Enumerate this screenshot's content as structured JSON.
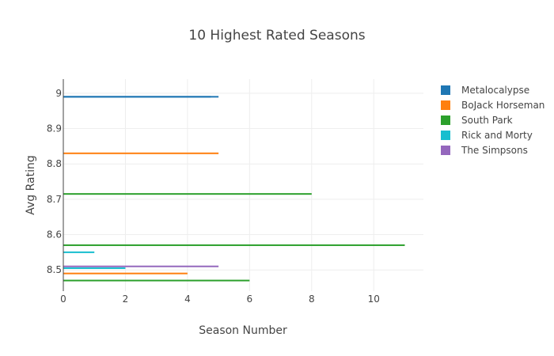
{
  "chart_data": {
    "type": "bar",
    "orientation": "horizontal",
    "title": "10 Highest Rated Seasons",
    "xlabel": "Season Number",
    "ylabel": "Avg Rating",
    "xlim": [
      0,
      11.6
    ],
    "ylim": [
      8.44,
      9.04
    ],
    "x_ticks": [
      0,
      2,
      4,
      6,
      8,
      10
    ],
    "y_ticks": [
      8.5,
      8.6,
      8.7,
      8.8,
      8.9,
      9
    ],
    "grid": true,
    "legend_position": "top-right",
    "series": [
      {
        "name": "Metalocalypse",
        "color": "#1f77b4",
        "bars": [
          {
            "season": 4.75,
            "rating": 8.99
          },
          {
            "season": 5,
            "rating": 8.99
          }
        ]
      },
      {
        "name": "BoJack Horseman",
        "color": "#ff7f0e",
        "bars": [
          {
            "season": 5,
            "rating": 8.83
          },
          {
            "season": 4,
            "rating": 8.49
          }
        ]
      },
      {
        "name": "South Park",
        "color": "#2ca02c",
        "bars": [
          {
            "season": 8,
            "rating": 8.715
          },
          {
            "season": 11,
            "rating": 8.57
          },
          {
            "season": 6,
            "rating": 8.47
          }
        ]
      },
      {
        "name": "Rick and Morty",
        "color": "#17becf",
        "bars": [
          {
            "season": 1,
            "rating": 8.55
          },
          {
            "season": 2,
            "rating": 8.505
          }
        ]
      },
      {
        "name": "The Simpsons",
        "color": "#9467bd",
        "bars": [
          {
            "season": 5,
            "rating": 8.51
          }
        ]
      }
    ]
  }
}
